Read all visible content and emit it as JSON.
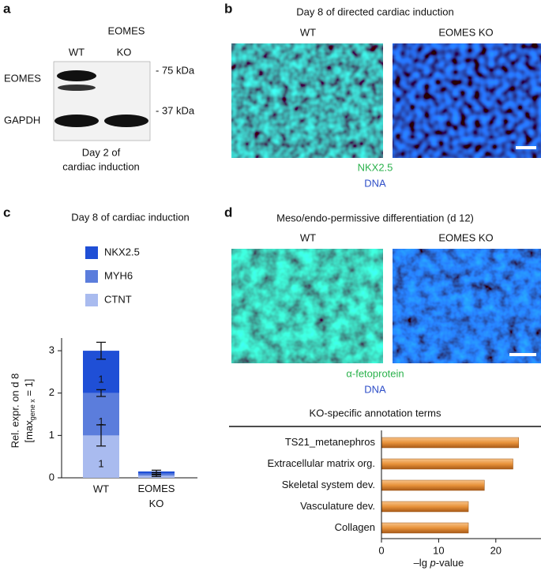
{
  "panels": {
    "a": {
      "label": "a",
      "header": "EOMES",
      "lanes": [
        "WT",
        "KO"
      ],
      "rows": [
        "EOMES",
        "GAPDH"
      ],
      "markers": [
        "- 75 kDa",
        "- 37 kDa"
      ],
      "caption": [
        "Day 2 of",
        "cardiac induction"
      ]
    },
    "b": {
      "label": "b",
      "title": "Day 8 of directed cardiac induction",
      "images": [
        "WT",
        "EOMES KO"
      ],
      "stains": [
        "NKX2.5",
        "DNA"
      ]
    },
    "c": {
      "label": "c"
    },
    "d": {
      "label": "d",
      "title": "Meso/endo-permissive differentiation (d 12)",
      "images": [
        "WT",
        "EOMES KO"
      ],
      "stains": [
        "α-fetoprotein",
        "DNA"
      ]
    }
  },
  "chart_data": [
    {
      "type": "stacked-bar",
      "title": "Day 8 of cardiac induction",
      "categories": [
        "WT",
        "EOMES KO"
      ],
      "series": [
        {
          "name": "NKX2.5",
          "color": "#1f4fd6",
          "values": [
            1,
            0.05
          ],
          "errors": [
            0.2,
            0.03
          ]
        },
        {
          "name": "MYH6",
          "color": "#5b7ddc",
          "values": [
            1,
            0.05
          ],
          "errors": [
            0.08,
            0.02
          ]
        },
        {
          "name": "CTNT",
          "color": "#a9bbef",
          "values": [
            1,
            0.05
          ],
          "errors": [
            0.25,
            0.02
          ]
        }
      ],
      "ylabel": "Rel. expr. on d 8",
      "ylabel_note": {
        "before": "[max",
        "sub": "gene x",
        "after": " = 1]"
      },
      "ylim": [
        0,
        3.3
      ],
      "yticks": [
        0,
        1,
        2,
        3
      ]
    },
    {
      "type": "hbar",
      "title": "KO-specific annotation terms",
      "categories": [
        "TS21_metanephros",
        "Extracellular matrix org.",
        "Skeletal system dev.",
        "Vasculature dev.",
        "Collagen"
      ],
      "values": [
        24,
        23,
        18,
        15.2,
        15.2
      ],
      "color": "#e8923a",
      "xlabel": {
        "before": "–lg ",
        "italic": "p",
        "after": "-value"
      },
      "xlim": [
        0,
        27.9
      ],
      "xticks": [
        0,
        10,
        20
      ]
    }
  ]
}
